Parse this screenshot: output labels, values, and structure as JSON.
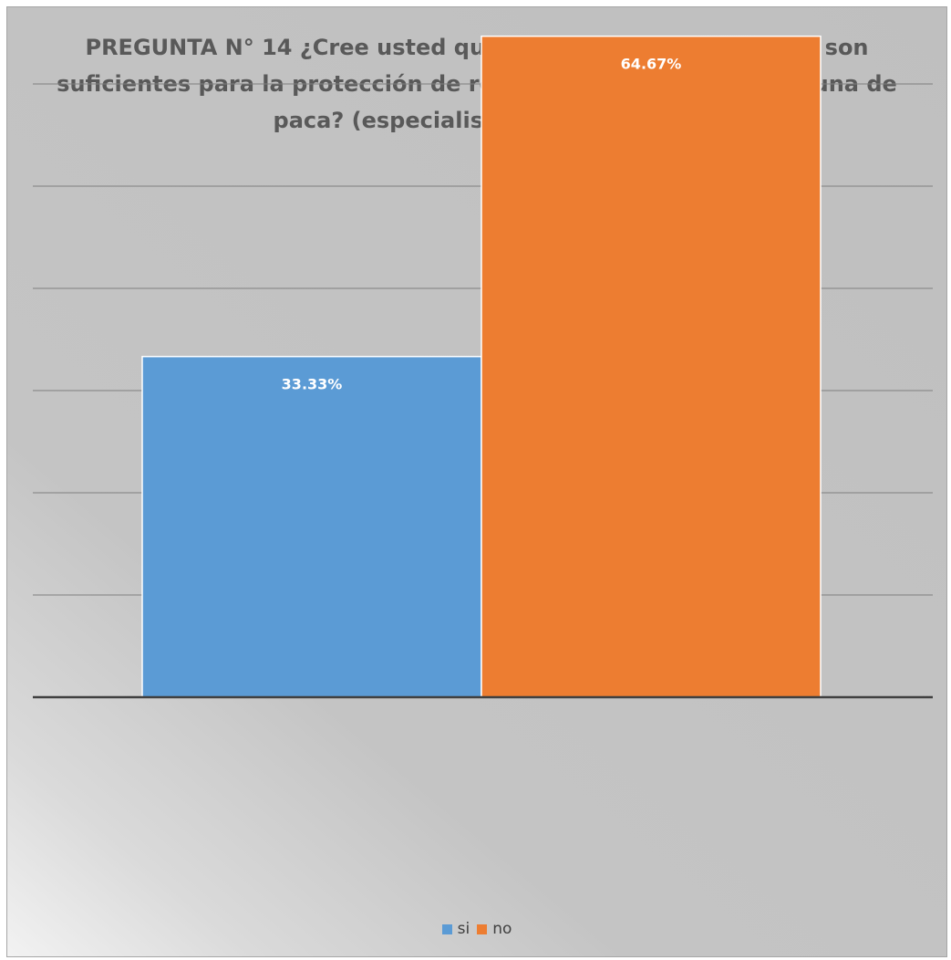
{
  "chart_data": {
    "type": "bar",
    "title": "PREGUNTA N° 14 ¿Cree usted que las leyes de fauna y flora son suficientes para la protección de recursos naturales de la laguna de paca? (especialistas y abogados)",
    "categories": [
      "si",
      "no"
    ],
    "values": [
      33.33,
      64.67
    ],
    "data_labels": [
      "33.33%",
      "64.67%"
    ],
    "ylim": [
      0,
      70
    ],
    "grid": true,
    "legend": {
      "position": "bottom",
      "entries": [
        "si",
        "no"
      ]
    },
    "colors": {
      "si": "#5b9bd5",
      "no": "#ed7d31"
    }
  }
}
